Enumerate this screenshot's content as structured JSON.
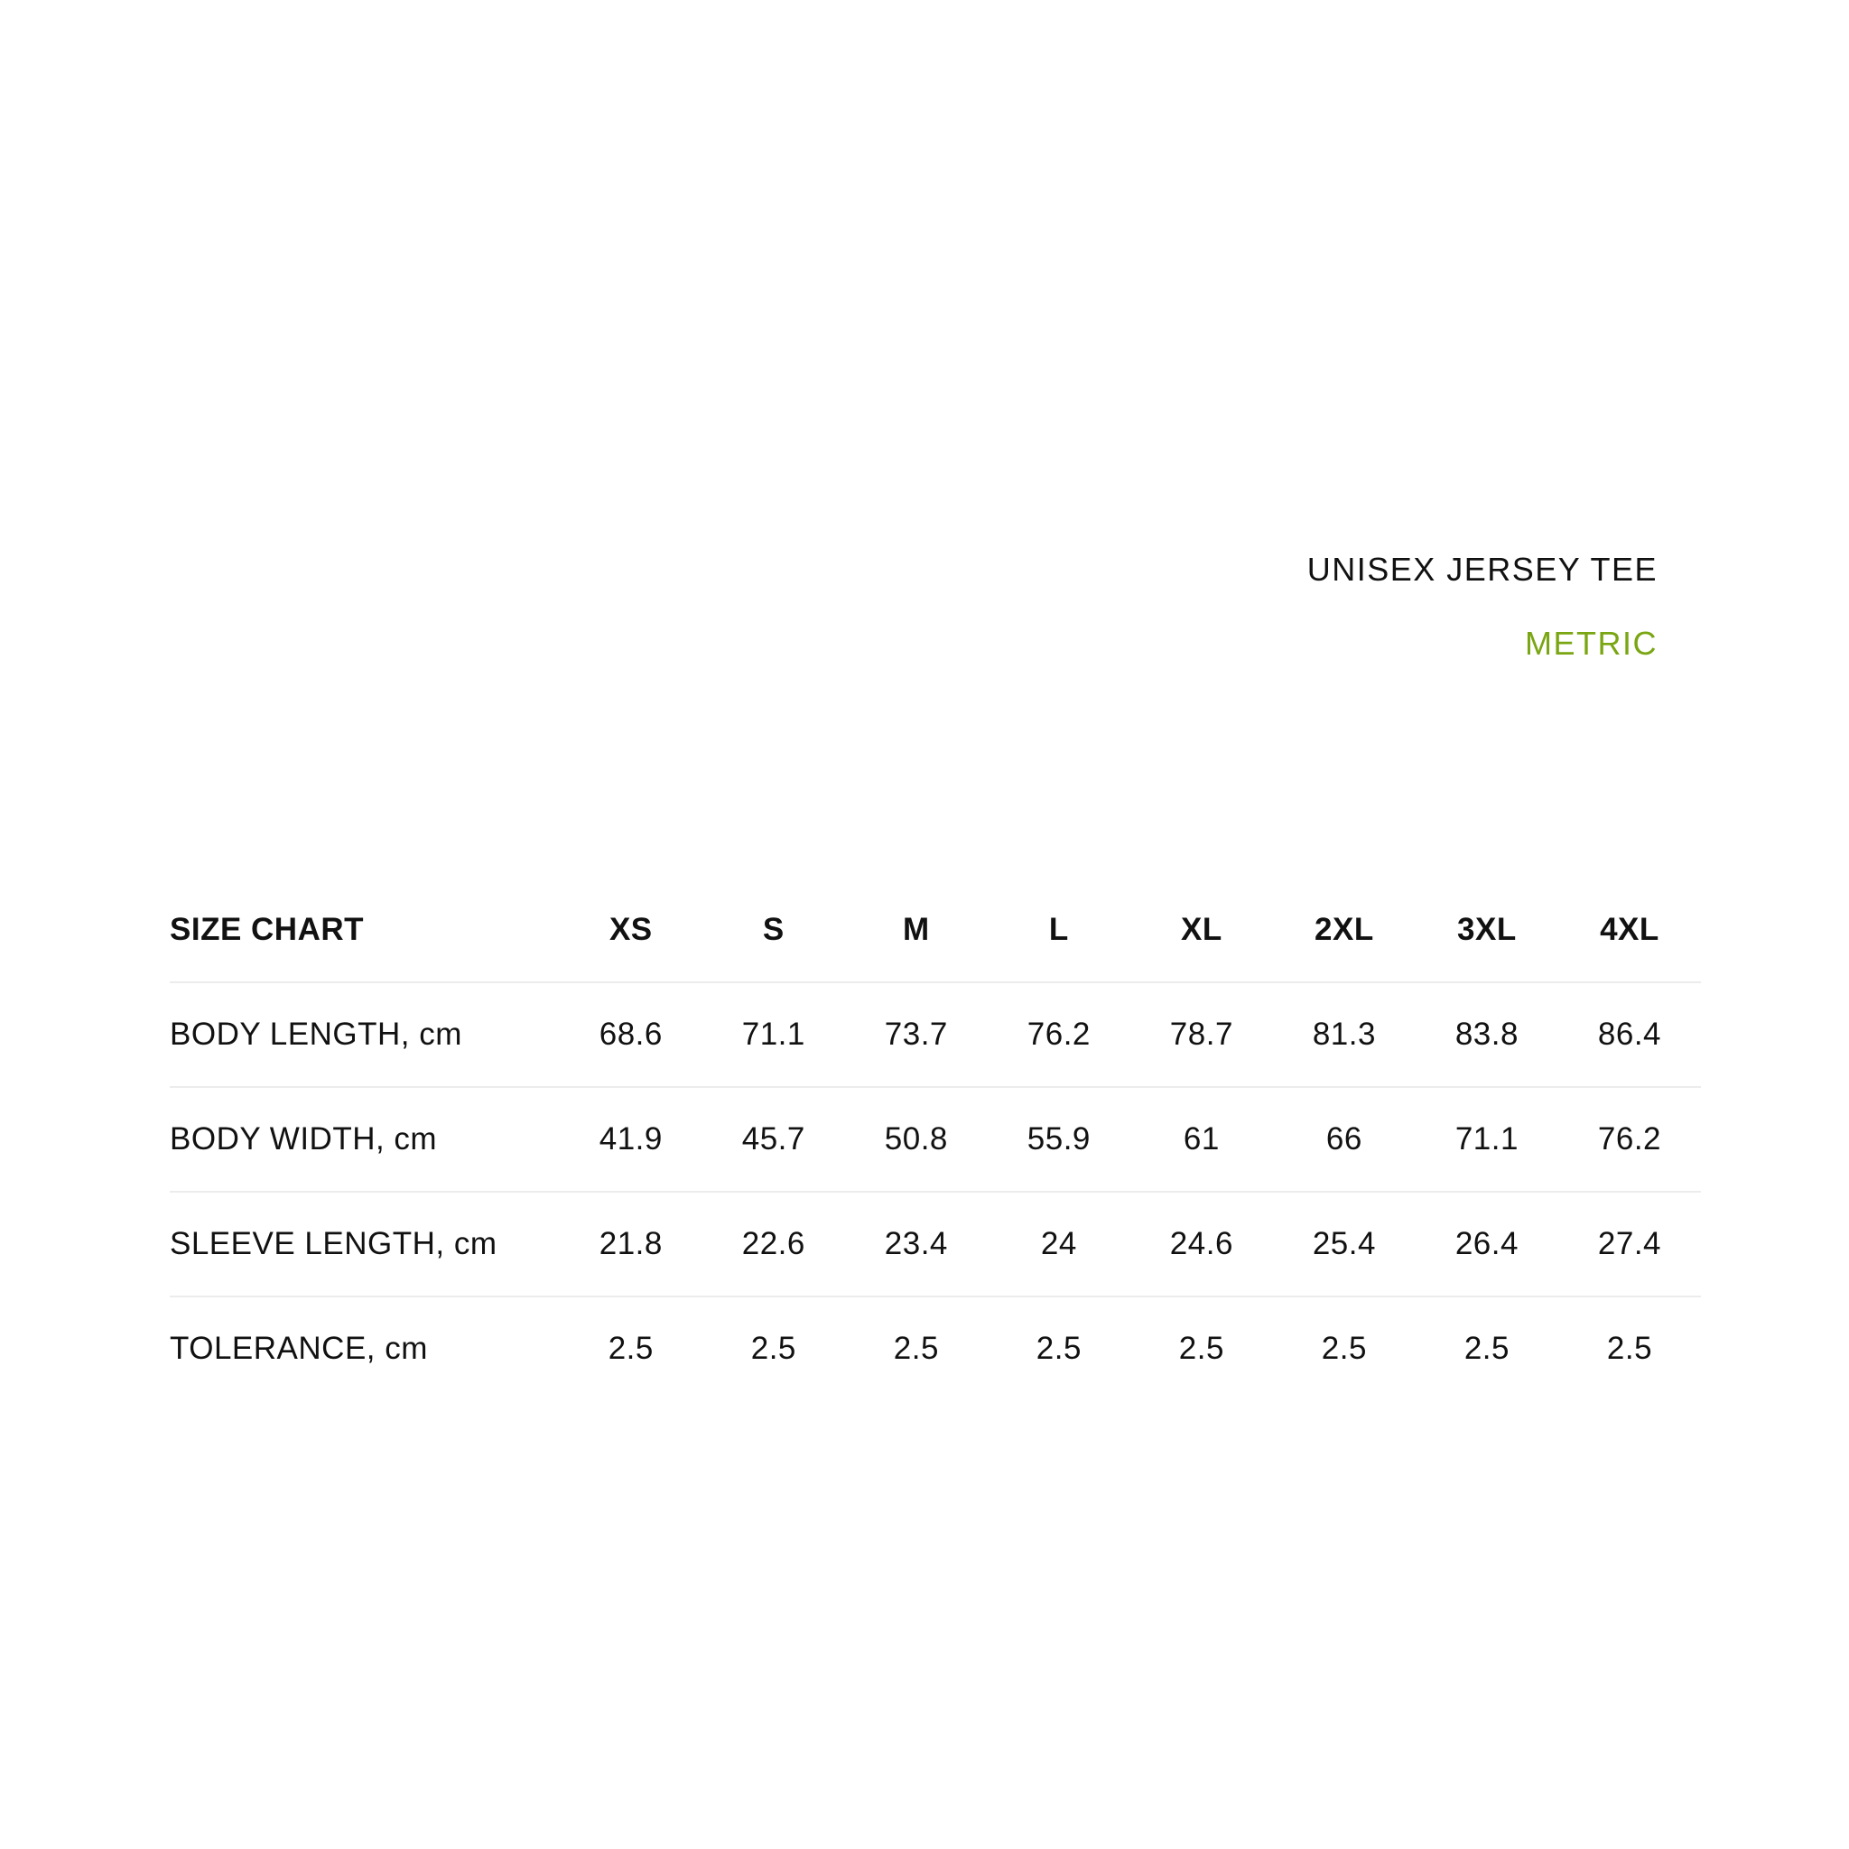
{
  "title": "UNISEX JERSEY TEE",
  "subtitle": "METRIC",
  "accent_color": "#7aa613",
  "table": {
    "header": "SIZE CHART",
    "sizes": [
      "XS",
      "S",
      "M",
      "L",
      "XL",
      "2XL",
      "3XL",
      "4XL"
    ],
    "rows": [
      {
        "label": "BODY LENGTH, cm",
        "values": [
          "68.6",
          "71.1",
          "73.7",
          "76.2",
          "78.7",
          "81.3",
          "83.8",
          "86.4"
        ]
      },
      {
        "label": "BODY WIDTH, cm",
        "values": [
          "41.9",
          "45.7",
          "50.8",
          "55.9",
          "61",
          "66",
          "71.1",
          "76.2"
        ]
      },
      {
        "label": "SLEEVE LENGTH, cm",
        "values": [
          "21.8",
          "22.6",
          "23.4",
          "24",
          "24.6",
          "25.4",
          "26.4",
          "27.4"
        ]
      },
      {
        "label": "TOLERANCE, cm",
        "values": [
          "2.5",
          "2.5",
          "2.5",
          "2.5",
          "2.5",
          "2.5",
          "2.5",
          "2.5"
        ]
      }
    ]
  }
}
